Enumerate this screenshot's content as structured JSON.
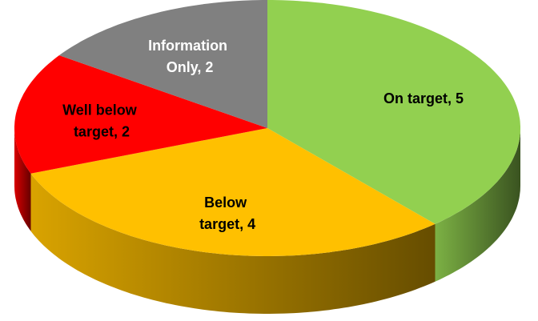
{
  "chart_data": {
    "type": "pie",
    "categories": [
      "On target",
      "Below target",
      "Well below target",
      "Information Only"
    ],
    "values": [
      5,
      4,
      2,
      2
    ],
    "value_labels": [
      "On target, 5",
      "Below target, 4",
      "Well below target, 2",
      "Information Only, 2"
    ],
    "colors": [
      "#92d050",
      "#ffc000",
      "#ff0000",
      "#808080"
    ]
  }
}
